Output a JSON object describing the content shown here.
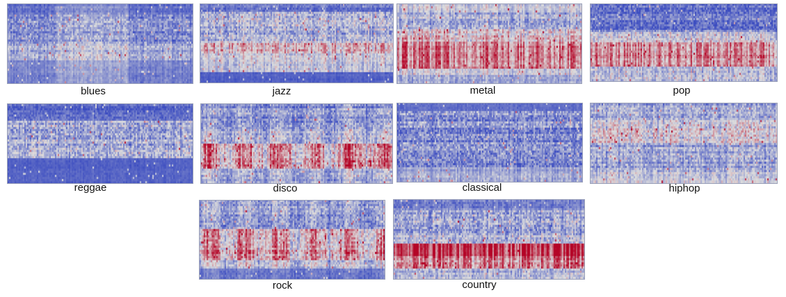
{
  "figure": {
    "panels": [
      {
        "id": "blues",
        "label": "blues"
      },
      {
        "id": "jazz",
        "label": "jazz"
      },
      {
        "id": "metal",
        "label": "metal"
      },
      {
        "id": "pop",
        "label": "pop"
      },
      {
        "id": "reggae",
        "label": "reggae"
      },
      {
        "id": "disco",
        "label": "disco"
      },
      {
        "id": "classical",
        "label": "classical"
      },
      {
        "id": "hiphop",
        "label": "hiphop"
      },
      {
        "id": "rock",
        "label": "rock"
      },
      {
        "id": "country",
        "label": "country"
      }
    ],
    "colormap": {
      "low": "#3b4cc0",
      "mid": "#dddddd",
      "high": "#b40426"
    }
  }
}
